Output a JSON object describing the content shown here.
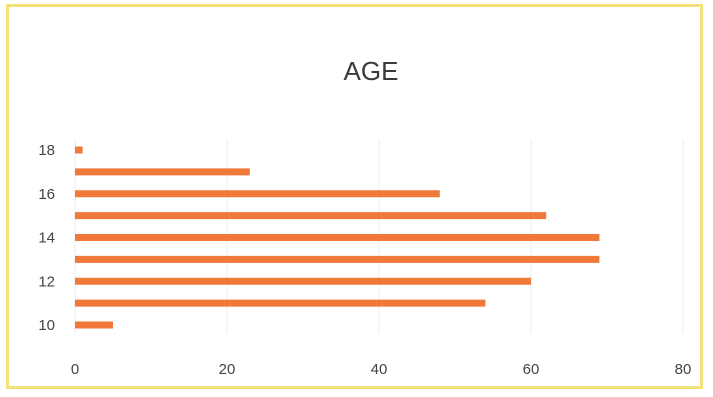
{
  "chart_data": {
    "type": "bar",
    "orientation": "horizontal",
    "title": "AGE",
    "xlabel": "",
    "ylabel": "",
    "categories": [
      10,
      11,
      12,
      13,
      14,
      15,
      16,
      17,
      18
    ],
    "y_tick_labels": [
      "10",
      "12",
      "14",
      "16",
      "18"
    ],
    "x_tick_labels": [
      "0",
      "20",
      "40",
      "60",
      "80"
    ],
    "values": [
      5,
      54,
      60,
      69,
      69,
      62,
      48,
      23,
      1
    ],
    "xlim": [
      0,
      80
    ],
    "grid": true,
    "legend": "none",
    "bar_color": "#f07838"
  }
}
